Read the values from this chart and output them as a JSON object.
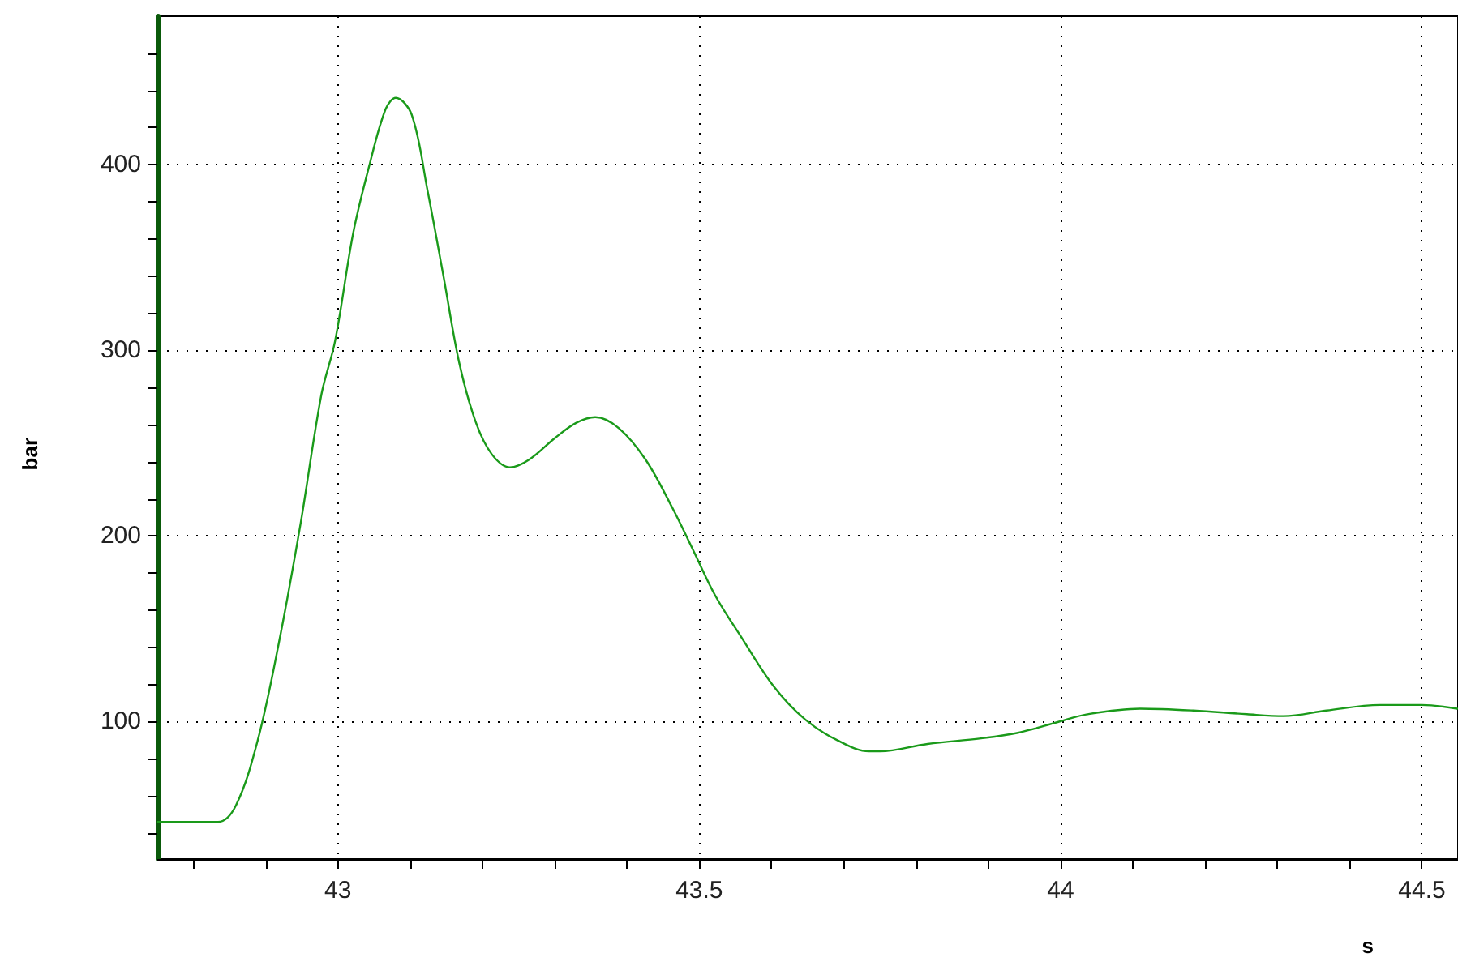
{
  "chart_data": {
    "type": "line",
    "xlabel": "s",
    "ylabel": "bar",
    "x": [
      42.75,
      42.834,
      42.859,
      42.889,
      42.918,
      42.948,
      42.977,
      42.996,
      43.021,
      43.043,
      43.066,
      43.08,
      43.102,
      43.124,
      43.146,
      43.168,
      43.191,
      43.213,
      43.238,
      43.264,
      43.301,
      43.33,
      43.356,
      43.389,
      43.426,
      43.463,
      43.492,
      43.522,
      43.559,
      43.603,
      43.647,
      43.691,
      43.735,
      43.75,
      43.816,
      43.89,
      43.941,
      43.998,
      44.037,
      44.11,
      44.184,
      44.258,
      44.309,
      44.368,
      44.442,
      44.5,
      44.549
    ],
    "series": [
      {
        "color": "#1a9a1a",
        "values": [
          46,
          46,
          55,
          90,
          142,
          206,
          276,
          305,
          363,
          399,
          430,
          436,
          427,
          386,
          340,
          293,
          261,
          244,
          237,
          241,
          253,
          261,
          264,
          258,
          241,
          215,
          192,
          168,
          145,
          119,
          101,
          90,
          84,
          84,
          88,
          91,
          94,
          100,
          104,
          107,
          106,
          104,
          103,
          106,
          109,
          109,
          107
        ]
      }
    ],
    "xlim": [
      42.75,
      44.55
    ],
    "xticks": [
      {
        "value": 42.8,
        "label": null
      },
      {
        "value": 42.9,
        "label": null
      },
      43,
      {
        "value": 43.1,
        "label": null
      },
      {
        "value": 43.2,
        "label": null
      },
      {
        "value": 43.3,
        "label": null
      },
      {
        "value": 43.4,
        "label": null
      },
      43.5,
      {
        "value": 43.6,
        "label": null
      },
      {
        "value": 43.7,
        "label": null
      },
      {
        "value": 43.8,
        "label": null
      },
      {
        "value": 43.9,
        "label": null
      },
      44,
      {
        "value": 44.1,
        "label": null
      },
      {
        "value": 44.2,
        "label": null
      },
      {
        "value": 44.3,
        "label": null
      },
      {
        "value": 44.4,
        "label": null
      },
      44.5
    ],
    "ylim": [
      26,
      480
    ],
    "yticks": [
      {
        "value": 40,
        "label": null
      },
      {
        "value": 60,
        "label": null
      },
      {
        "value": 80,
        "label": null
      },
      100,
      {
        "value": 120,
        "label": null
      },
      {
        "value": 140,
        "label": null
      },
      {
        "value": 160,
        "label": null
      },
      {
        "value": 180,
        "label": null
      },
      200,
      {
        "value": 220,
        "label": null
      },
      {
        "value": 240,
        "label": null
      },
      {
        "value": 260,
        "label": null
      },
      {
        "value": 280,
        "label": null
      },
      300,
      {
        "value": 320,
        "label": null
      },
      {
        "value": 340,
        "label": null
      },
      {
        "value": 360,
        "label": null
      },
      {
        "value": 380,
        "label": null
      },
      400,
      {
        "value": 420,
        "label": null
      },
      {
        "value": 440,
        "label": null
      },
      {
        "value": 460,
        "label": null
      }
    ],
    "grid": true,
    "marker": "none",
    "line_style": "solid"
  }
}
